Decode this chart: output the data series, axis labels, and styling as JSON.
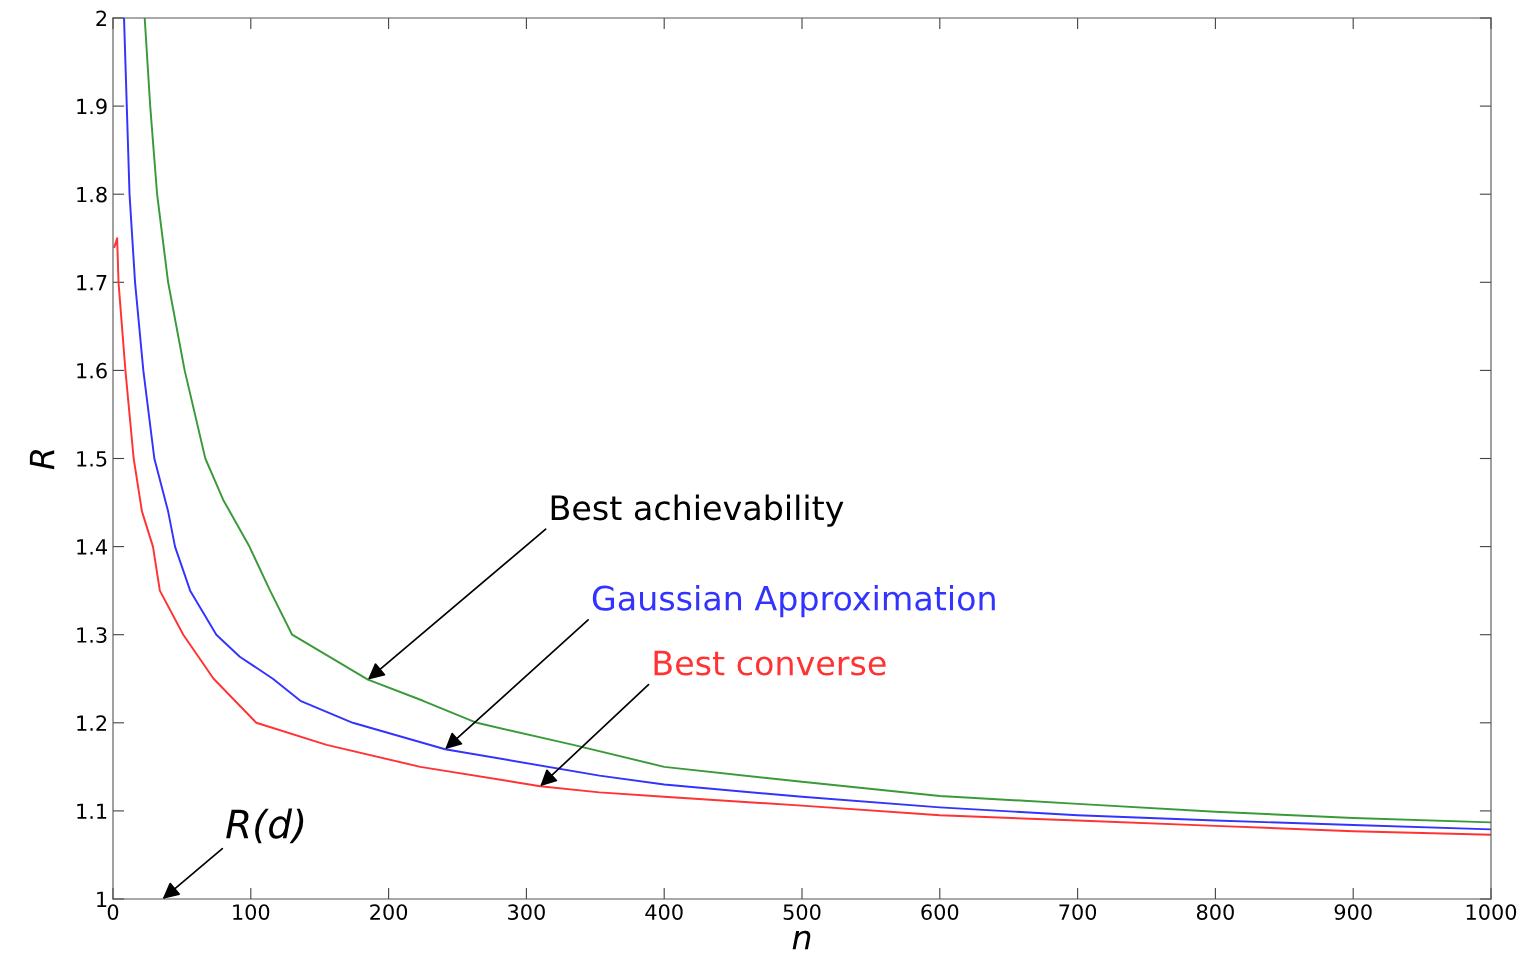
{
  "chart_data": {
    "type": "line",
    "xlabel": "n",
    "ylabel": "R",
    "xlim": [
      0,
      1000
    ],
    "ylim": [
      1,
      2
    ],
    "xticks": [
      0,
      100,
      200,
      300,
      400,
      500,
      600,
      700,
      800,
      900,
      1000
    ],
    "yticks": [
      1,
      1.1,
      1.2,
      1.3,
      1.4,
      1.5,
      1.6,
      1.7,
      1.8,
      1.9,
      2
    ],
    "grid": false,
    "legend": false,
    "series": [
      {
        "color": "#3a9a3a",
        "x": [
          23,
          27,
          32,
          40,
          52,
          67,
          80,
          99,
          114,
          130,
          185,
          225,
          264,
          334,
          400,
          500,
          600,
          700,
          800,
          900,
          1000
        ],
        "values": [
          2,
          1.9,
          1.8,
          1.7,
          1.6,
          1.5,
          1.453,
          1.4,
          1.35,
          1.3,
          1.249,
          1.225,
          1.2,
          1.175,
          1.15,
          1.133,
          1.117,
          1.108,
          1.099,
          1.092,
          1.087
        ]
      },
      {
        "color": "#3333ff",
        "x": [
          8,
          10,
          12,
          16,
          22,
          30,
          40,
          45,
          56,
          75,
          92,
          116,
          136,
          174,
          241,
          353,
          400,
          500,
          600,
          700,
          800,
          900,
          1000
        ],
        "values": [
          2,
          1.9,
          1.8,
          1.7,
          1.6,
          1.5,
          1.44,
          1.4,
          1.35,
          1.3,
          1.275,
          1.25,
          1.225,
          1.2,
          1.17,
          1.14,
          1.13,
          1.116,
          1.104,
          1.095,
          1.089,
          1.084,
          1.079
        ]
      },
      {
        "color": "#ff3333",
        "x": [
          1,
          3,
          4,
          9,
          12,
          15,
          21,
          29,
          34,
          51,
          73,
          104,
          155,
          223,
          310,
          353,
          400,
          500,
          600,
          700,
          800,
          900,
          1000
        ],
        "values": [
          1.74,
          1.75,
          1.7,
          1.6,
          1.55,
          1.5,
          1.44,
          1.4,
          1.35,
          1.3,
          1.25,
          1.2,
          1.175,
          1.15,
          1.128,
          1.121,
          1.116,
          1.106,
          1.095,
          1.089,
          1.083,
          1.077,
          1.073
        ]
      }
    ],
    "annotations": [
      {
        "text": "Best achievability",
        "x": 185,
        "y": 1.249
      },
      {
        "text": "Gaussian Approximation",
        "x": 241,
        "y": 1.17
      },
      {
        "text": "Best converse",
        "x": 310,
        "y": 1.128
      },
      "R(d)"
    ]
  }
}
